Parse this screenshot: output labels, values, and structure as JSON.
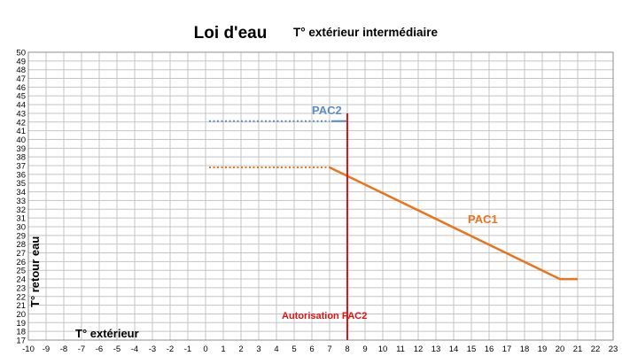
{
  "chart_data": {
    "type": "line",
    "title": "Loi d'eau",
    "subtitle": "T° extérieur intermédiaire",
    "xlabel": "T° extérieur",
    "ylabel": "T° retour eau",
    "xlim": [
      -10,
      23
    ],
    "ylim": [
      17,
      50
    ],
    "x_ticks": [
      -10,
      -9,
      -8,
      -7,
      -6,
      -5,
      -4,
      -3,
      -2,
      -1,
      0,
      1,
      2,
      3,
      4,
      5,
      6,
      7,
      8,
      9,
      10,
      11,
      12,
      13,
      14,
      15,
      16,
      17,
      18,
      19,
      20,
      21,
      22,
      23
    ],
    "y_ticks": [
      17,
      18,
      19,
      20,
      21,
      22,
      23,
      24,
      25,
      26,
      27,
      28,
      29,
      30,
      31,
      32,
      33,
      34,
      35,
      36,
      37,
      38,
      39,
      40,
      41,
      42,
      43,
      44,
      45,
      46,
      47,
      48,
      49,
      50
    ],
    "grid": true,
    "series": [
      {
        "name": "PAC1",
        "color": "#e8741c",
        "solid": [
          [
            7,
            36.8
          ],
          [
            20,
            24
          ],
          [
            21,
            24
          ]
        ],
        "dotted": [
          [
            0.2,
            36.8
          ],
          [
            7,
            36.8
          ]
        ]
      },
      {
        "name": "PAC2",
        "color": "#5b8ec9",
        "solid": [
          [
            7.1,
            42.1
          ],
          [
            8,
            42.1
          ]
        ],
        "dotted": [
          [
            0.2,
            42.1
          ],
          [
            7,
            42.1
          ]
        ]
      }
    ],
    "vertical_line": {
      "x": 8,
      "y_top": 43,
      "label": "Autorisation PAC2",
      "color": "#e01414"
    }
  }
}
